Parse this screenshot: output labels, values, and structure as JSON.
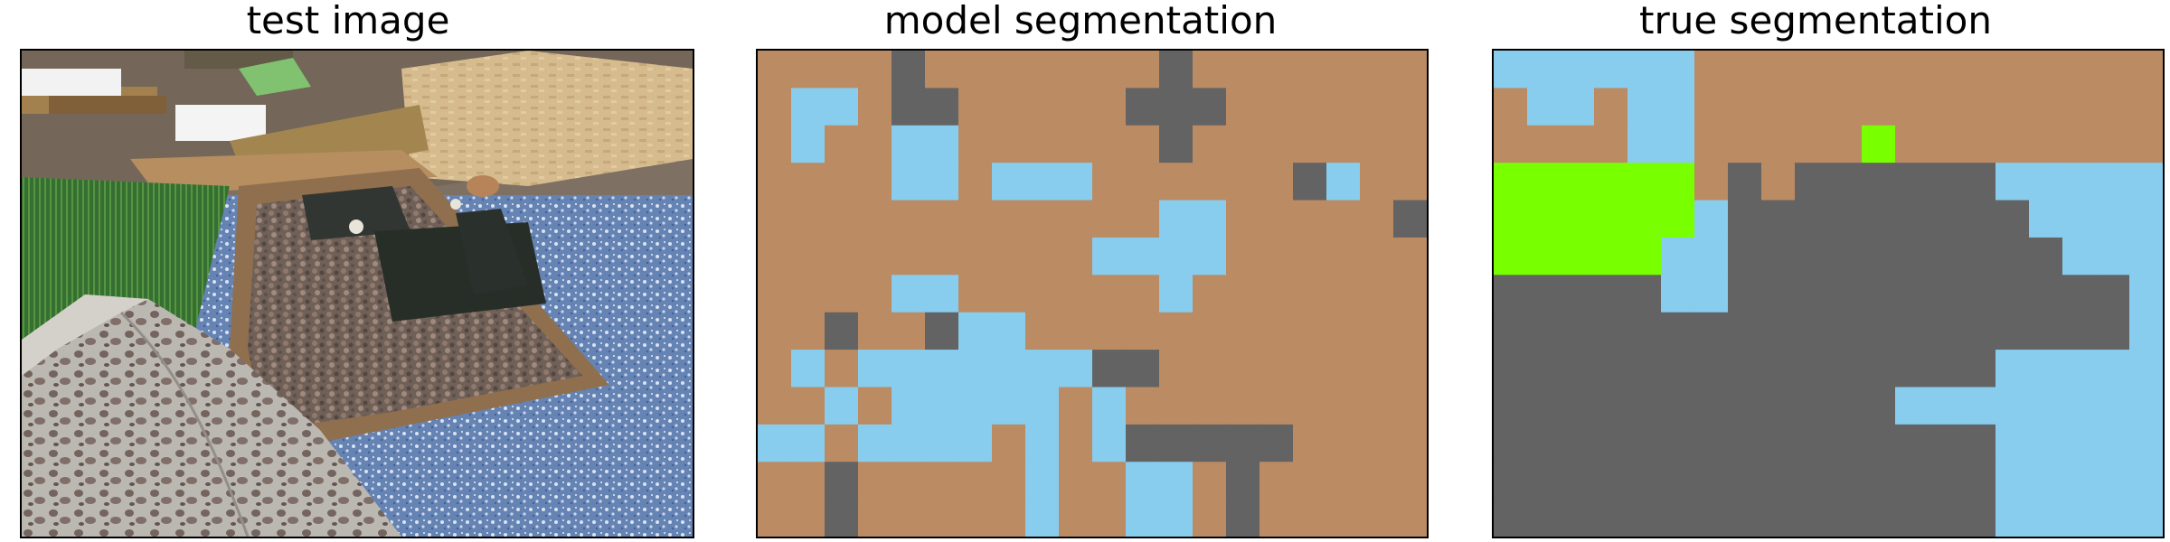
{
  "titles": {
    "test_image": "test image",
    "model_seg": "model segmentation",
    "true_seg": "true segmentation"
  },
  "palette": {
    "b": "#bb8b64",
    "s": "#88cdee",
    "g": "#636363",
    "l": "#78ff00"
  },
  "model_segmentation": [
    "bbbbgbbbbbbbgbbbbbbb",
    "bssbggbbbbbgggbbbbbb",
    "bsbbssbbbbbbgbbbbbbb",
    "bbbbssbsssbbbbbbgsbb",
    "bbbbbbbbbbbbssbbbbbg",
    "bbbbbbbbbbssssbbbbbb",
    "bbbbssbbbbbbsbbbbbbb",
    "bbgbbgssbbbbbbbbbbbb",
    "bsbsssssssggbbbbbbbb",
    "bbsbsssssbsbbbbbbbbb",
    "ssbssssbsbsgggggbbbb",
    "bbgbbbbbsbbssbgbbbbb",
    "bbgbbbbbsbbssbgbbbbb"
  ],
  "true_segmentation": [
    "ssssssbbbbbbbbbbbbbb",
    "bssbssbbbbbbbbbbbbbb",
    "bbbbssbbbbblbbbbbbbb",
    "llllllbgbggggggsssss",
    "llllllsgggggggggssss",
    "lllllssggggggggggsss",
    "gggggssggggggggggggs",
    "gggggggggggggggggggs",
    "gggggggggggggggsssss",
    "ggggggggggggssssssss",
    "gggggggggggggggsssss",
    "gggggggggggggggsssss",
    "gggggggggggggggsssss"
  ]
}
